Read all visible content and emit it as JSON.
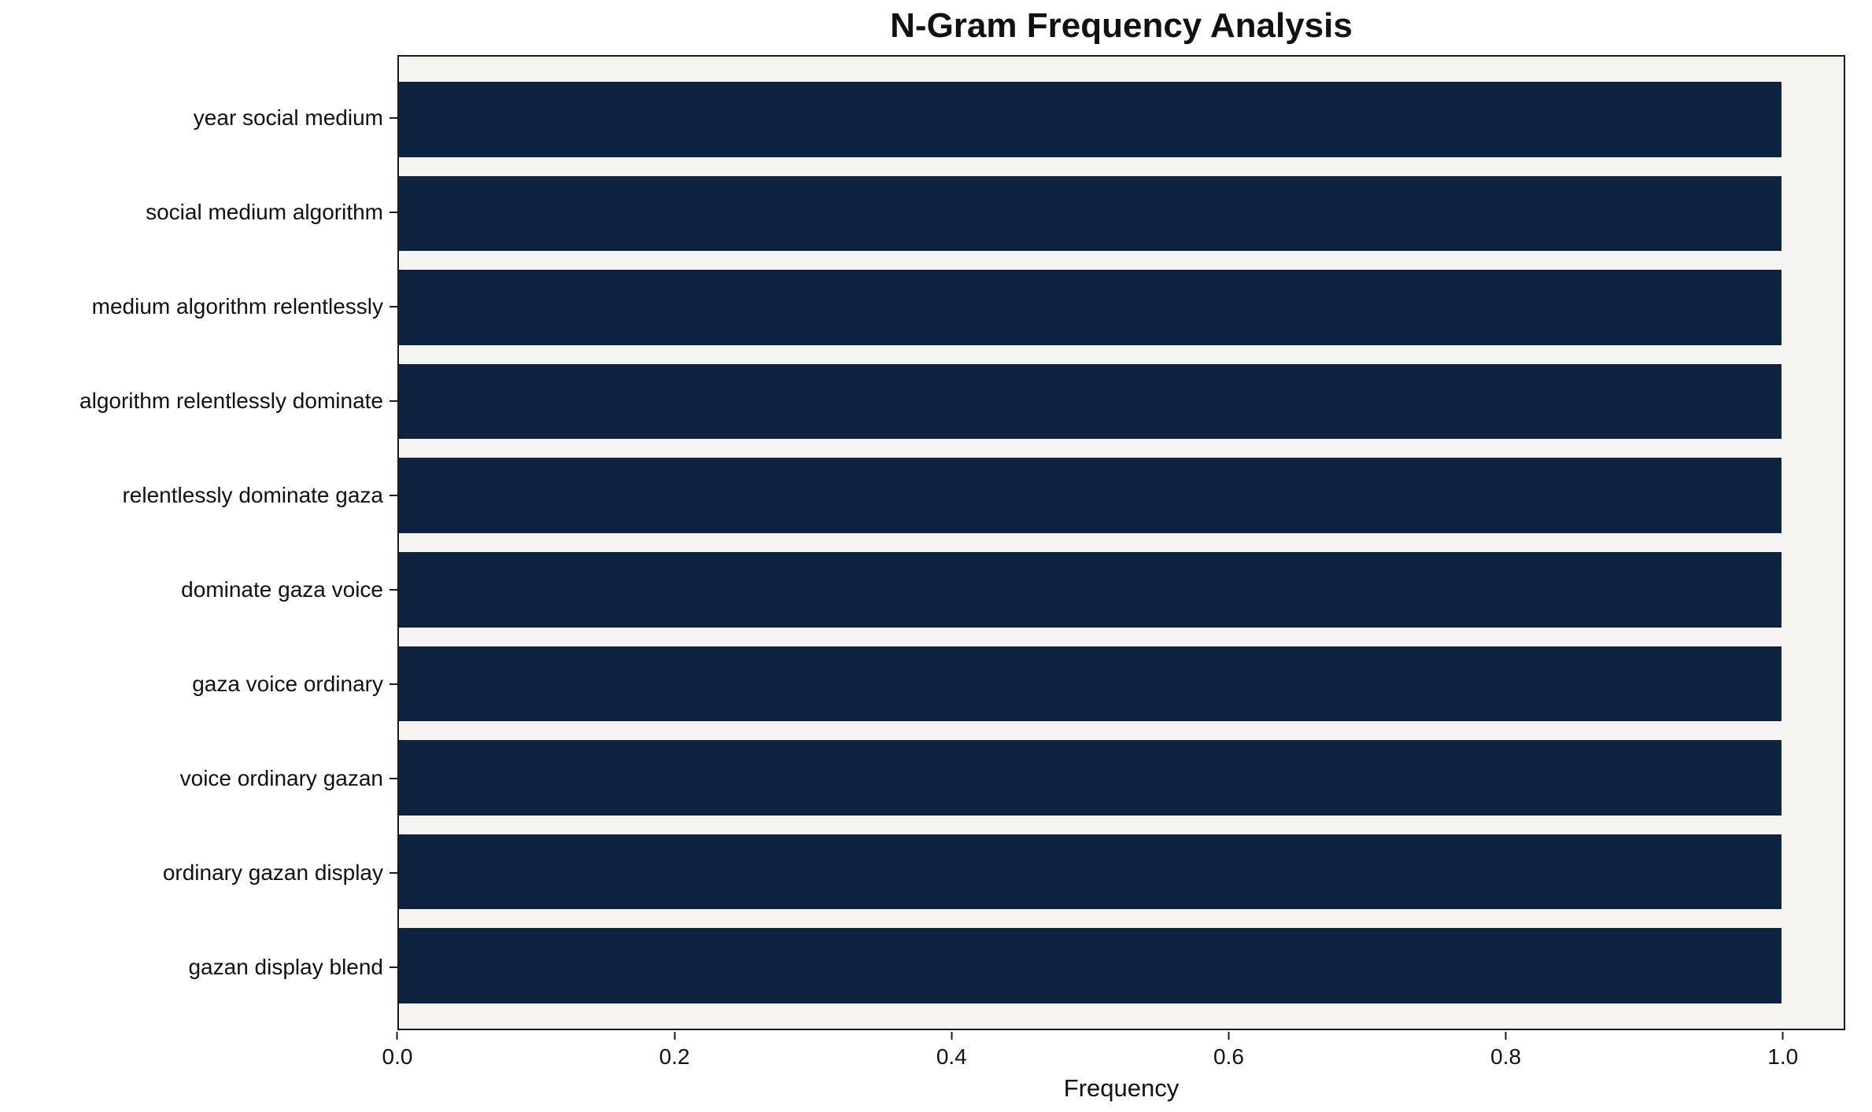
{
  "chart_data": {
    "type": "bar",
    "orientation": "horizontal",
    "title": "N-Gram Frequency Analysis",
    "xlabel": "Frequency",
    "ylabel": "",
    "categories": [
      "year social medium",
      "social medium algorithm",
      "medium algorithm relentlessly",
      "algorithm relentlessly dominate",
      "relentlessly dominate gaza",
      "dominate gaza voice",
      "gaza voice ordinary",
      "voice ordinary gazan",
      "ordinary gazan display",
      "gazan display blend"
    ],
    "values": [
      1.0,
      1.0,
      1.0,
      1.0,
      1.0,
      1.0,
      1.0,
      1.0,
      1.0,
      1.0
    ],
    "xlim": [
      0,
      1.045
    ],
    "xticks": [
      0.0,
      0.2,
      0.4,
      0.6,
      0.8,
      1.0
    ],
    "xtick_labels": [
      "0.0",
      "0.2",
      "0.4",
      "0.6",
      "0.8",
      "1.0"
    ],
    "grid": false,
    "legend": false,
    "colors": {
      "bar": "#0e2340",
      "plot_background": "#f5f4f1",
      "figure_background": "#ffffff",
      "spine": "#1a1a1a",
      "text": "#111111"
    }
  }
}
